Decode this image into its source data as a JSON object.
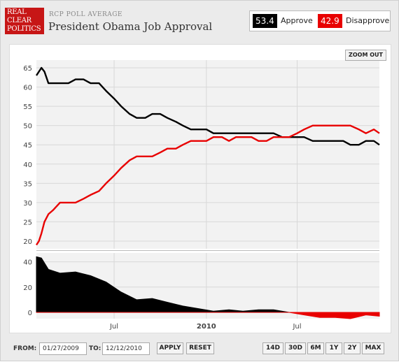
{
  "header": {
    "logo_lines": [
      "REAL",
      "CLEAR",
      "POLITICS"
    ],
    "kicker": "RCP POLL AVERAGE",
    "title": "President Obama Job Approval"
  },
  "legend": {
    "approve_value": "53.4",
    "approve_label": "Approve",
    "disapprove_value": "42.9",
    "disapprove_label": "Disapprove"
  },
  "colors": {
    "approve": "#000000",
    "disapprove": "#e80000",
    "grid": "#d8d8d8",
    "plot_bg": "#f2f2f2"
  },
  "toolbar": {
    "zoom_out_label": "ZOOM OUT"
  },
  "footer": {
    "from_label": "FROM:",
    "from_value": "01/27/2009",
    "to_label": "TO:",
    "to_value": "12/12/2010",
    "apply_label": "APPLY",
    "reset_label": "RESET",
    "ranges": [
      "14D",
      "30D",
      "6M",
      "1Y",
      "2Y",
      "MAX"
    ]
  },
  "chart_data": [
    {
      "type": "line",
      "ylim": [
        18,
        67
      ],
      "yticks": [
        20,
        25,
        30,
        35,
        40,
        45,
        50,
        55,
        60,
        65
      ],
      "grid": true,
      "series": [
        {
          "name": "Approve",
          "color": "#000000",
          "points": [
            [
              "2009-01-27",
              63
            ],
            [
              "2009-02-01",
              64
            ],
            [
              "2009-02-06",
              65
            ],
            [
              "2009-02-12",
              64
            ],
            [
              "2009-02-20",
              61
            ],
            [
              "2009-03-01",
              61
            ],
            [
              "2009-03-15",
              61
            ],
            [
              "2009-04-01",
              61
            ],
            [
              "2009-04-15",
              62
            ],
            [
              "2009-05-01",
              62
            ],
            [
              "2009-05-15",
              61
            ],
            [
              "2009-06-01",
              61
            ],
            [
              "2009-06-15",
              59
            ],
            [
              "2009-07-01",
              57
            ],
            [
              "2009-07-15",
              55
            ],
            [
              "2009-08-01",
              53
            ],
            [
              "2009-08-15",
              52
            ],
            [
              "2009-09-01",
              52
            ],
            [
              "2009-09-15",
              53
            ],
            [
              "2009-10-01",
              53
            ],
            [
              "2009-10-15",
              52
            ],
            [
              "2009-11-01",
              51
            ],
            [
              "2009-11-15",
              50
            ],
            [
              "2009-12-01",
              49
            ],
            [
              "2009-12-15",
              49
            ],
            [
              "2010-01-01",
              49
            ],
            [
              "2010-01-15",
              48
            ],
            [
              "2010-02-01",
              48
            ],
            [
              "2010-02-15",
              48
            ],
            [
              "2010-03-01",
              48
            ],
            [
              "2010-03-15",
              48
            ],
            [
              "2010-04-01",
              48
            ],
            [
              "2010-04-15",
              48
            ],
            [
              "2010-05-01",
              48
            ],
            [
              "2010-05-15",
              48
            ],
            [
              "2010-06-01",
              47
            ],
            [
              "2010-06-15",
              47
            ],
            [
              "2010-07-01",
              47
            ],
            [
              "2010-07-15",
              47
            ],
            [
              "2010-08-01",
              46
            ],
            [
              "2010-08-15",
              46
            ],
            [
              "2010-09-01",
              46
            ],
            [
              "2010-09-15",
              46
            ],
            [
              "2010-10-01",
              46
            ],
            [
              "2010-10-15",
              45
            ],
            [
              "2010-11-01",
              45
            ],
            [
              "2010-11-15",
              46
            ],
            [
              "2010-12-01",
              46
            ],
            [
              "2010-12-12",
              45
            ]
          ]
        },
        {
          "name": "Disapprove",
          "color": "#e80000",
          "points": [
            [
              "2009-01-27",
              19
            ],
            [
              "2009-02-01",
              20
            ],
            [
              "2009-02-06",
              22
            ],
            [
              "2009-02-12",
              25
            ],
            [
              "2009-02-20",
              27
            ],
            [
              "2009-03-01",
              28
            ],
            [
              "2009-03-15",
              30
            ],
            [
              "2009-04-01",
              30
            ],
            [
              "2009-04-15",
              30
            ],
            [
              "2009-05-01",
              31
            ],
            [
              "2009-05-15",
              32
            ],
            [
              "2009-06-01",
              33
            ],
            [
              "2009-06-15",
              35
            ],
            [
              "2009-07-01",
              37
            ],
            [
              "2009-07-15",
              39
            ],
            [
              "2009-08-01",
              41
            ],
            [
              "2009-08-15",
              42
            ],
            [
              "2009-09-01",
              42
            ],
            [
              "2009-09-15",
              42
            ],
            [
              "2009-10-01",
              43
            ],
            [
              "2009-10-15",
              44
            ],
            [
              "2009-11-01",
              44
            ],
            [
              "2009-11-15",
              45
            ],
            [
              "2009-12-01",
              46
            ],
            [
              "2009-12-15",
              46
            ],
            [
              "2010-01-01",
              46
            ],
            [
              "2010-01-15",
              47
            ],
            [
              "2010-02-01",
              47
            ],
            [
              "2010-02-15",
              46
            ],
            [
              "2010-03-01",
              47
            ],
            [
              "2010-03-15",
              47
            ],
            [
              "2010-04-01",
              47
            ],
            [
              "2010-04-15",
              46
            ],
            [
              "2010-05-01",
              46
            ],
            [
              "2010-05-15",
              47
            ],
            [
              "2010-06-01",
              47
            ],
            [
              "2010-06-15",
              47
            ],
            [
              "2010-07-01",
              48
            ],
            [
              "2010-07-15",
              49
            ],
            [
              "2010-08-01",
              50
            ],
            [
              "2010-08-15",
              50
            ],
            [
              "2010-09-01",
              50
            ],
            [
              "2010-09-15",
              50
            ],
            [
              "2010-10-01",
              50
            ],
            [
              "2010-10-15",
              50
            ],
            [
              "2010-11-01",
              49
            ],
            [
              "2010-11-15",
              48
            ],
            [
              "2010-12-01",
              49
            ],
            [
              "2010-12-12",
              48
            ]
          ]
        }
      ]
    },
    {
      "type": "area",
      "ylim": [
        -5,
        47
      ],
      "yticks": [
        0,
        20,
        40
      ],
      "grid": true,
      "series": [
        {
          "name": "Spread",
          "color": "#000000",
          "negative_color": "#e80000",
          "points": [
            [
              "2009-01-27",
              44
            ],
            [
              "2009-02-06",
              43
            ],
            [
              "2009-02-20",
              34
            ],
            [
              "2009-03-15",
              31
            ],
            [
              "2009-04-15",
              32
            ],
            [
              "2009-05-15",
              29
            ],
            [
              "2009-06-15",
              24
            ],
            [
              "2009-07-15",
              16
            ],
            [
              "2009-08-15",
              10
            ],
            [
              "2009-09-15",
              11
            ],
            [
              "2009-10-15",
              8
            ],
            [
              "2009-11-15",
              5
            ],
            [
              "2009-12-15",
              3
            ],
            [
              "2010-01-15",
              1
            ],
            [
              "2010-02-15",
              2
            ],
            [
              "2010-03-15",
              1
            ],
            [
              "2010-04-15",
              2
            ],
            [
              "2010-05-15",
              2
            ],
            [
              "2010-06-15",
              0
            ],
            [
              "2010-07-15",
              -2
            ],
            [
              "2010-08-15",
              -4
            ],
            [
              "2010-09-15",
              -4
            ],
            [
              "2010-10-15",
              -5
            ],
            [
              "2010-11-15",
              -2
            ],
            [
              "2010-12-12",
              -3
            ]
          ]
        }
      ]
    }
  ],
  "x_axis": {
    "ticks": [
      [
        "2009-07-01",
        "Jul"
      ],
      [
        "2010-01-01",
        "2010"
      ],
      [
        "2010-07-01",
        "Jul"
      ]
    ],
    "bold": [
      "2010"
    ],
    "range": [
      "2009-01-27",
      "2010-12-12"
    ]
  }
}
